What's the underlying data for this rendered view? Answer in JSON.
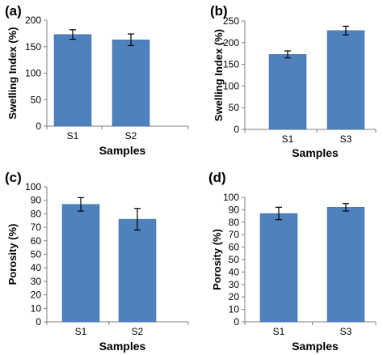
{
  "colors": {
    "bar": "#4f81bd",
    "bar_edge": "#3a6aa5",
    "axis": "#7f7f7f",
    "text": "#000000"
  },
  "chart_data": [
    {
      "panel": "(a)",
      "type": "bar",
      "categories": [
        "S1",
        "S2"
      ],
      "values": [
        173,
        163
      ],
      "errors": [
        9,
        11
      ],
      "xlabel": "Samples",
      "ylabel": "Swelling Index (%)",
      "ylim": [
        0,
        200
      ],
      "yticks": [
        0,
        50,
        100,
        150,
        200
      ],
      "grid": false
    },
    {
      "panel": "(b)",
      "type": "bar",
      "categories": [
        "S1",
        "S3"
      ],
      "values": [
        173,
        228
      ],
      "errors": [
        8,
        10
      ],
      "xlabel": "Samples",
      "ylabel": "Swelling Index (%)",
      "ylim": [
        0,
        250
      ],
      "yticks": [
        0,
        50,
        100,
        150,
        200,
        250
      ],
      "grid": false
    },
    {
      "panel": "(c)",
      "type": "bar",
      "categories": [
        "S1",
        "S2"
      ],
      "values": [
        87,
        76
      ],
      "errors": [
        5,
        8
      ],
      "xlabel": "Samples",
      "ylabel": "Porosity (%)",
      "ylim": [
        0,
        100
      ],
      "yticks": [
        0,
        10,
        20,
        30,
        40,
        50,
        60,
        70,
        80,
        90,
        100
      ],
      "grid": false
    },
    {
      "panel": "(d)",
      "type": "bar",
      "categories": [
        "S1",
        "S3"
      ],
      "values": [
        87,
        92
      ],
      "errors": [
        5,
        3
      ],
      "xlabel": "Samples",
      "ylabel": "Porosity (%)",
      "ylim": [
        0,
        100
      ],
      "yticks": [
        0,
        10,
        20,
        30,
        40,
        50,
        60,
        70,
        80,
        90,
        100
      ],
      "grid": false
    }
  ]
}
